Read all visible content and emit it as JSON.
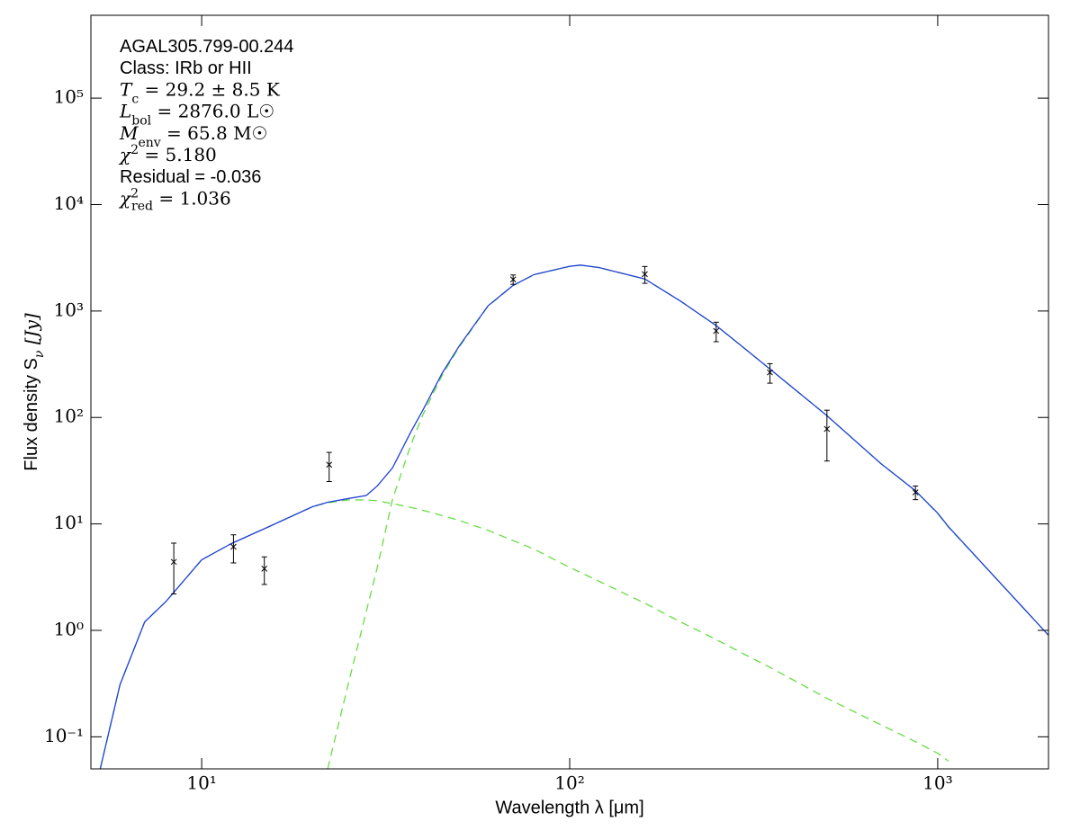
{
  "chart_data": {
    "type": "line",
    "xscale": "log",
    "yscale": "log",
    "x_label": "Wavelength λ [μm]",
    "y_label": {
      "main": "Flux density S",
      "sub": "ν",
      "tail": " [Jy]"
    },
    "annotations": [
      "AGAL305.799-00.244",
      "Class: IRb or HII",
      {
        "main": "T",
        "sub": "c",
        "tail": " = 29.2 ± 8.5 K"
      },
      {
        "main": "L",
        "sub": "bol",
        "tail": " = 2876.0 L☉"
      },
      {
        "main": "M",
        "sub": "env",
        "tail": " = 65.8 M☉"
      },
      {
        "main": "χ",
        "sup": "2",
        "tail": " = 5.180"
      },
      "Residual = -0.036",
      {
        "main": "χ",
        "sup": "2",
        "sub": "red",
        "tail": " = 1.036"
      }
    ],
    "xlim": [
      5,
      2000
    ],
    "ylim": [
      0.05,
      600000
    ],
    "xticks": [
      {
        "value": 10,
        "label": "10¹"
      },
      {
        "value": 100,
        "label": "10²"
      },
      {
        "value": 1000,
        "label": "10³"
      }
    ],
    "yticks": [
      {
        "value": 0.1,
        "label": "10⁻¹"
      },
      {
        "value": 1,
        "label": "10⁰"
      },
      {
        "value": 10,
        "label": "10¹"
      },
      {
        "value": 100,
        "label": "10²"
      },
      {
        "value": 1000,
        "label": "10³"
      },
      {
        "value": 10000,
        "label": "10⁴"
      },
      {
        "value": 100000,
        "label": "10⁵"
      }
    ],
    "x": [
      5.3,
      6,
      7,
      8,
      10,
      12,
      15,
      20,
      22,
      25,
      28,
      30,
      33,
      37,
      40,
      45,
      50,
      60,
      70,
      80,
      100,
      107,
      120,
      160,
      200,
      250,
      300,
      350,
      500,
      700,
      870,
      1000,
      1070,
      2000
    ],
    "series": [
      {
        "color": "#66dd44",
        "linestyle": "dashed",
        "values": [
          0.05,
          0.31,
          1.2,
          1.87,
          4.6,
          6.5,
          9.2,
          14.5,
          15.8,
          16.8,
          16.8,
          16.5,
          15.5,
          14.3,
          13.4,
          12,
          10.8,
          8.7,
          7.0,
          5.8,
          3.9,
          3.5,
          2.9,
          1.8,
          1.2,
          0.82,
          0.59,
          0.45,
          0.23,
          0.13,
          0.09,
          0.07,
          0.059,
          null
        ]
      },
      {
        "color": "#66dd44",
        "linestyle": "dashed",
        "values": [
          null,
          null,
          null,
          null,
          null,
          null,
          null,
          null,
          0.05,
          0.31,
          1.5,
          3.9,
          17,
          55,
          108,
          248,
          455,
          1110,
          1723,
          2195,
          2626,
          2697,
          2557,
          1998,
          1239,
          729,
          439,
          285,
          104,
          37,
          20.4,
          12.5,
          9.3,
          0.9
        ]
      },
      {
        "color": "#1f3fd8",
        "linestyle": "solid",
        "values": [
          0.05,
          0.31,
          1.2,
          1.87,
          4.6,
          6.5,
          9.2,
          14.5,
          16.0,
          17.3,
          18.5,
          22.7,
          33.6,
          73,
          119,
          260,
          465,
          1120,
          1730,
          2200,
          2630,
          2700,
          2560,
          2000,
          1240,
          730,
          440,
          285,
          104,
          37,
          20.5,
          12.6,
          9.4,
          0.9
        ]
      }
    ],
    "points": {
      "x": [
        8.4,
        12.2,
        14.8,
        22.2,
        70.2,
        160,
        250,
        350,
        500,
        870
      ],
      "values": [
        4.4,
        6.1,
        3.8,
        36,
        1980,
        2220,
        650,
        265,
        78,
        19.8
      ],
      "errors": [
        2.2,
        1.8,
        1.1,
        11,
        200,
        400,
        135,
        55,
        39,
        2.9
      ],
      "color": "#000000"
    }
  }
}
